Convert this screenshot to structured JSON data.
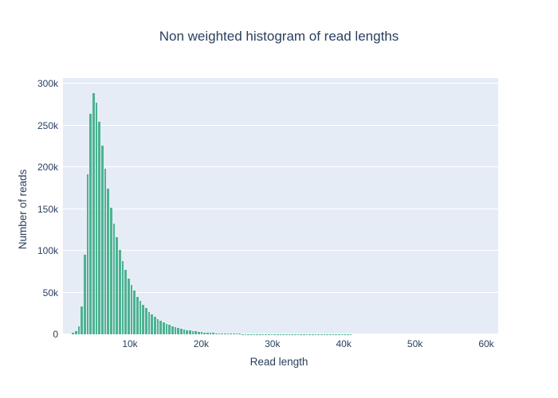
{
  "figure": {
    "title": "Non weighted histogram of read lengths"
  },
  "x_axis": {
    "label": "Read length",
    "tick_labels": [
      "10k",
      "20k",
      "30k",
      "40k",
      "50k",
      "60k"
    ],
    "tick_values": [
      10000,
      20000,
      30000,
      40000,
      50000,
      60000
    ]
  },
  "y_axis": {
    "label": "Number of reads",
    "tick_labels": [
      "0",
      "50k",
      "100k",
      "150k",
      "200k",
      "250k",
      "300k"
    ],
    "tick_values": [
      0,
      50000,
      100000,
      150000,
      200000,
      250000,
      300000
    ]
  },
  "colors": {
    "bar": "#4CB391",
    "plot_background": "#E5ECF6",
    "gridline": "#FFFFFF",
    "text": "#2a3f5f"
  },
  "chart_data": {
    "type": "bar",
    "subtype": "histogram",
    "title": "Non weighted histogram of read lengths",
    "xlabel": "Read length",
    "ylabel": "Number of reads",
    "xlim": [
      604,
      61678
    ],
    "ylim": [
      0,
      306700
    ],
    "grid": true,
    "legend_position": "none",
    "bar_color": "#4CB391",
    "first_bin_center": 2025,
    "bin_width": 410,
    "values": [
      1500,
      4000,
      10000,
      33000,
      95000,
      191000,
      264000,
      289000,
      277000,
      254000,
      226000,
      198000,
      174000,
      151000,
      132000,
      116000,
      101000,
      88000,
      77000,
      67000,
      59000,
      52000,
      45000,
      40000,
      35000,
      31000,
      27000,
      24000,
      21000,
      18500,
      16300,
      14300,
      12600,
      11000,
      9700,
      8500,
      7500,
      6600,
      5800,
      5100,
      4500,
      3900,
      3400,
      3000,
      2650,
      2300,
      2000,
      1800,
      1600,
      1400,
      1200,
      1050,
      950,
      850,
      750,
      650,
      600,
      520,
      460,
      400,
      360,
      320,
      280,
      250,
      220,
      200,
      175,
      155,
      135,
      120,
      105,
      95,
      85,
      75,
      65,
      60,
      50,
      45,
      40,
      35,
      32,
      28,
      25,
      22,
      20,
      18,
      16,
      14,
      13,
      11,
      10,
      9,
      8,
      7,
      6,
      6
    ]
  }
}
